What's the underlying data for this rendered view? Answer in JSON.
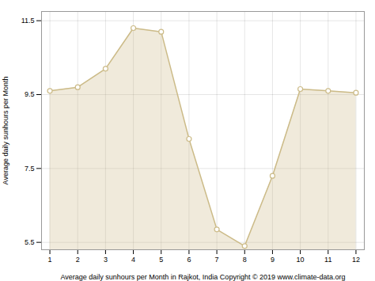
{
  "chart_data": {
    "type": "area",
    "x": [
      1,
      2,
      3,
      4,
      5,
      6,
      7,
      8,
      9,
      10,
      11,
      12
    ],
    "values": [
      9.6,
      9.7,
      10.2,
      11.3,
      11.2,
      8.3,
      5.85,
      5.4,
      7.3,
      9.65,
      9.6,
      9.55
    ],
    "color": "#CCBB88",
    "marker": "circle",
    "xlabel": "Average daily sunhours per Month in Rajkot, India Copyright © 2019 www.climate-data.org",
    "ylabel": "Average daily sunhours per Month",
    "xlim": [
      0.7,
      12.3
    ],
    "xticks": [
      1,
      2,
      3,
      4,
      5,
      6,
      7,
      8,
      9,
      10,
      11,
      12
    ],
    "ylim": [
      5.3,
      11.75
    ],
    "yticks": [
      5.5,
      7.5,
      9.5,
      11.5
    ],
    "grid": true
  }
}
